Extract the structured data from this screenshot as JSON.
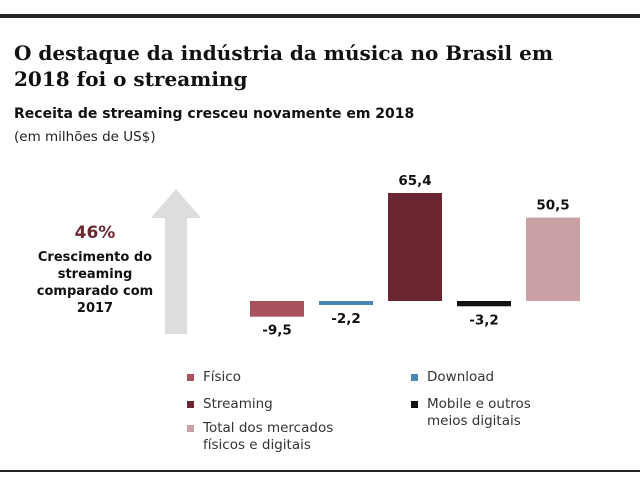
{
  "title": "O destaque da indústria da música no Brasil em 2018 foi o streaming",
  "subtitle": "Receita de streaming cresceu novamente em 2018",
  "unit": "(em milhões de US$)",
  "growth": {
    "percent": "46%",
    "text": "Crescimento do streaming comparado com 2017",
    "arrow_color": "#dddddd"
  },
  "chart_data": {
    "type": "bar",
    "title": "Receita de streaming cresceu novamente em 2018",
    "ylabel": "(em milhões de US$)",
    "categories": [
      "Físico",
      "Download",
      "Streaming",
      "Mobile e outros meios digitais",
      "Total dos mercados físicos e digitais"
    ],
    "values": [
      -9.5,
      -2.2,
      65.4,
      -3.2,
      50.5
    ],
    "value_labels": [
      "-9,5",
      "-2,2",
      "65,4",
      "-3,2",
      "50,5"
    ],
    "colors": [
      "#a8525e",
      "#4c86b2",
      "#6b2731",
      "#111111",
      "#c9a1a4"
    ],
    "grid": false
  },
  "legend": [
    {
      "label": "Físico",
      "color": "#a8525e"
    },
    {
      "label": "Download",
      "color": "#4c86b2"
    },
    {
      "label": "Streaming",
      "color": "#6b2731"
    },
    {
      "label": "Mobile e outros meios digitais",
      "color": "#111111"
    },
    {
      "label": "Total dos mercados físicos e digitais",
      "color": "#c9a1a4"
    }
  ]
}
